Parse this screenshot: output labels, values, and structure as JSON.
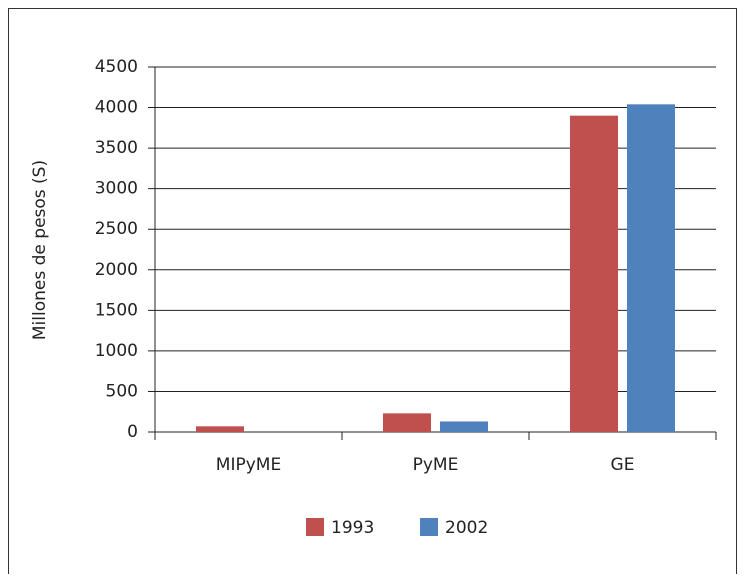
{
  "chart_data": {
    "type": "bar",
    "y_label": "Millones de pesos (S)",
    "categories": [
      "MIPyME",
      "PyME",
      "GE"
    ],
    "series": [
      {
        "name": "1993",
        "color": "#c0504d",
        "values": [
          70,
          230,
          3900
        ]
      },
      {
        "name": "2002",
        "color": "#4f81bd",
        "values": [
          0,
          130,
          4040
        ]
      }
    ],
    "ylim": [
      0,
      4500
    ],
    "yticks": [
      0,
      500,
      1000,
      1500,
      2000,
      2500,
      3000,
      3500,
      4000,
      4500
    ],
    "grid": true,
    "legend": "bottom"
  }
}
